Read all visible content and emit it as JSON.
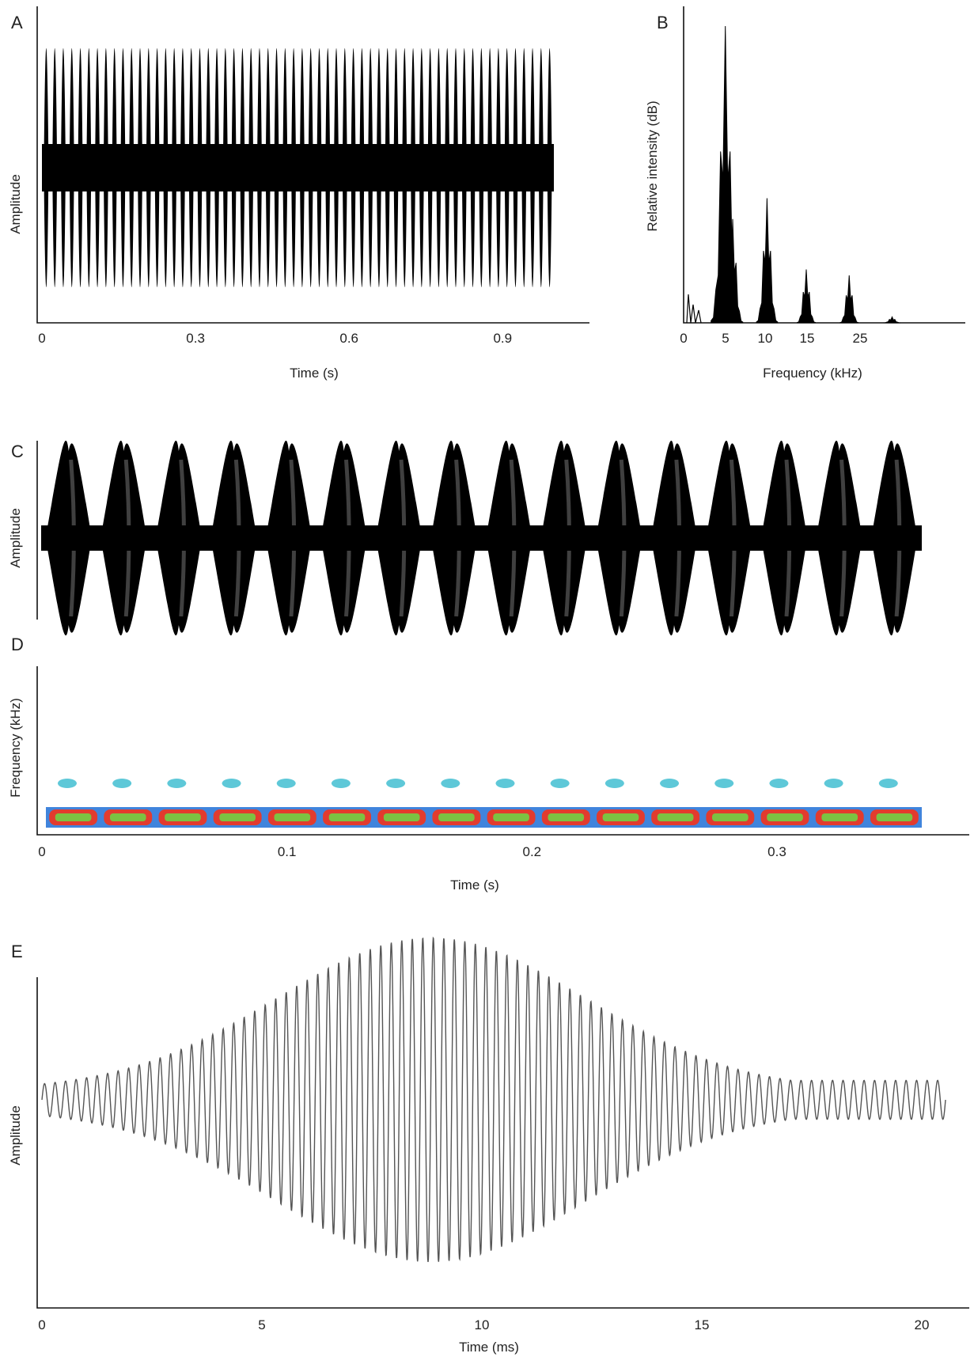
{
  "chart_data": [
    {
      "panel": "A",
      "type": "line",
      "description": "oscillogram",
      "xlabel": "Time (s)",
      "ylabel": "Amplitude",
      "xticks": [
        "0",
        "0.3",
        "0.6",
        "0.9"
      ],
      "xlim": [
        0,
        1.0
      ],
      "pulse_count": 60,
      "pulse_period_s": 0.01667,
      "signal_duration_s": 1.0,
      "color": "#000000"
    },
    {
      "panel": "B",
      "type": "line",
      "description": "power spectrum",
      "xlabel": "Frequency (kHz)",
      "ylabel": "Relative intensity (dB)",
      "xticks": [
        "0",
        "5",
        "10",
        "15",
        "25"
      ],
      "peaks": [
        {
          "frequency_khz": 3.4,
          "relative_height": 1.0
        },
        {
          "frequency_khz": 4.0,
          "relative_height": 0.35
        },
        {
          "frequency_khz": 6.8,
          "relative_height": 0.42
        },
        {
          "frequency_khz": 10.0,
          "relative_height": 0.18
        },
        {
          "frequency_khz": 13.5,
          "relative_height": 0.16
        },
        {
          "frequency_khz": 17.0,
          "relative_height": 0.02
        }
      ],
      "color": "#000000"
    },
    {
      "panel": "C",
      "type": "line",
      "description": "expanded oscillogram",
      "ylabel": "Amplitude",
      "pulse_count": 16,
      "color": "#000000"
    },
    {
      "panel": "D",
      "type": "heatmap",
      "description": "spectrogram",
      "xlabel": "Time (s)",
      "ylabel": "Frequency (kHz)",
      "xticks": [
        "0",
        "0.1",
        "0.2",
        "0.3"
      ],
      "xlim": [
        0,
        0.39
      ],
      "pulse_count": 16,
      "pulse_period_s": 0.0222,
      "colors": {
        "low": "#1f6fd6",
        "mid": "#e23b2e",
        "core": "#7cc242",
        "harmonic": "#5ec8d8"
      }
    },
    {
      "panel": "E",
      "type": "line",
      "description": "single pulse waveform",
      "xlabel": "Time (ms)",
      "ylabel": "Amplitude",
      "xticks": [
        "0",
        "5",
        "10",
        "15",
        "20"
      ],
      "xlim": [
        0,
        21.6
      ],
      "carrier_cycles": 86,
      "envelope_peak_ms": 9.3,
      "color": "#555555"
    }
  ]
}
